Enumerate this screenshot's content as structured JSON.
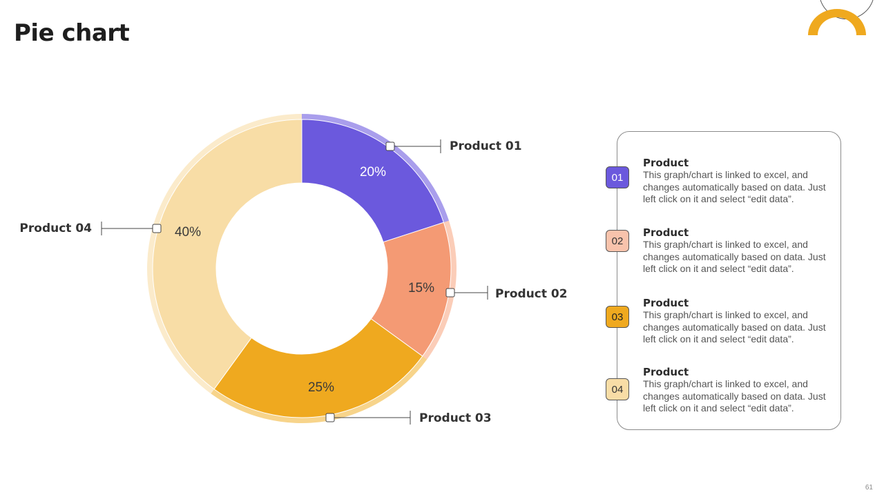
{
  "slide": {
    "title": "Pie chart",
    "page_number": "61"
  },
  "colors": {
    "product_01": "#6B59DD",
    "product_02": "#F49A74",
    "product_03": "#EFA91F",
    "product_04": "#F8DDA6",
    "accent": "#EFA91F"
  },
  "chart_data": {
    "type": "pie",
    "variant": "donut",
    "categories": [
      "Product 01",
      "Product 02",
      "Product 03",
      "Product 04"
    ],
    "values": [
      20,
      15,
      25,
      40
    ],
    "value_labels": [
      "20%",
      "15%",
      "25%",
      "40%"
    ]
  },
  "legend": {
    "items": [
      {
        "number": "01",
        "heading": "Product",
        "text": "This graph/chart is linked to excel, and changes automatically based on data. Just left click on it and select “edit data”."
      },
      {
        "number": "02",
        "heading": "Product",
        "text": "This graph/chart is linked to excel, and changes automatically based on data. Just left click on it and select “edit data”."
      },
      {
        "number": "03",
        "heading": "Product",
        "text": "This graph/chart is linked to excel, and changes automatically based on data. Just left click on it and select “edit data”."
      },
      {
        "number": "04",
        "heading": "Product",
        "text": "This graph/chart is linked to excel, and changes automatically based on data. Just left click on it and select “edit data”."
      }
    ]
  }
}
